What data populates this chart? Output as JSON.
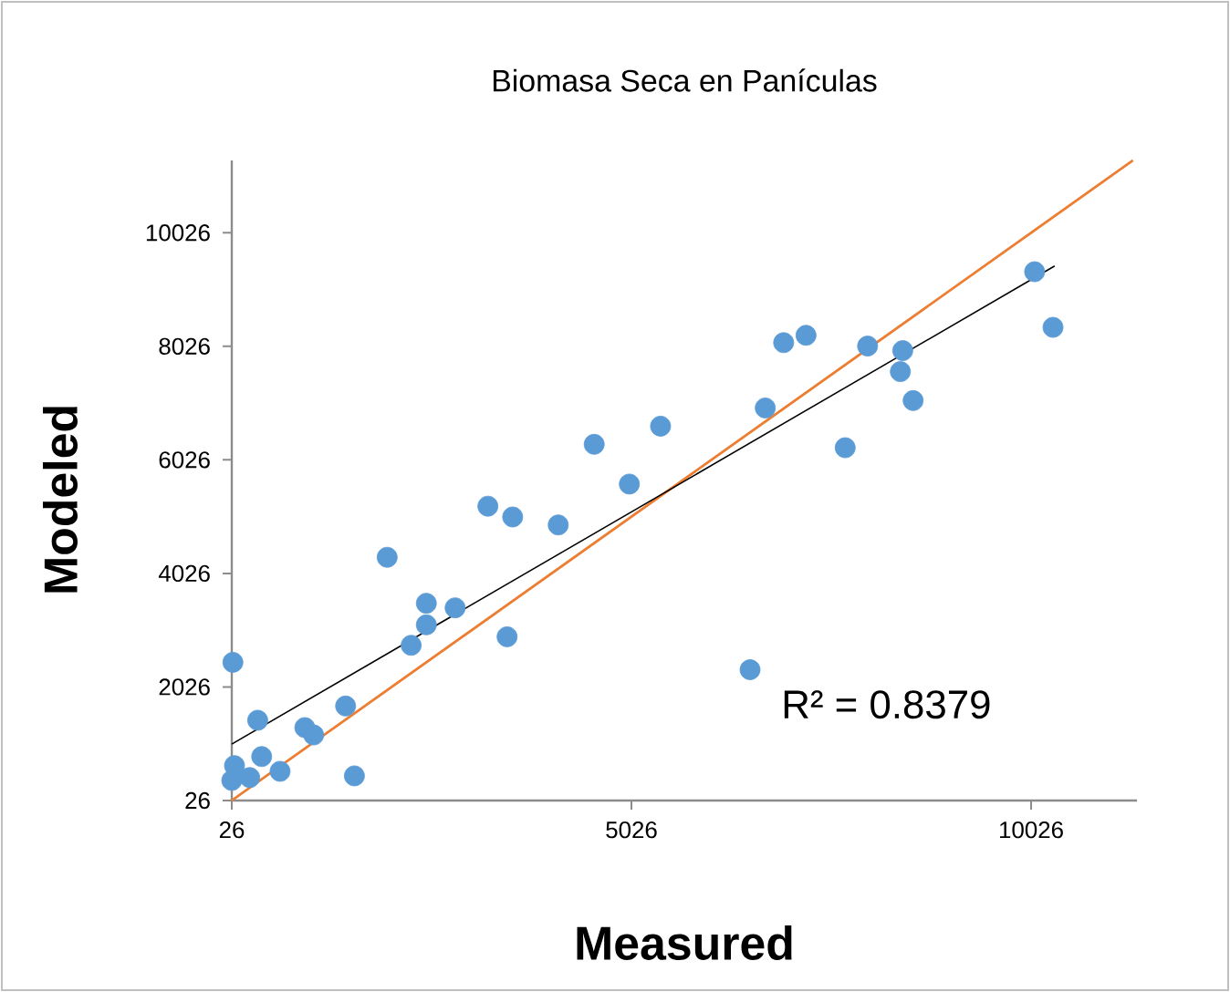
{
  "chart_data": {
    "type": "scatter",
    "title": "Biomasa Seca en Panículas",
    "xlabel": "Measured",
    "ylabel": "Modeled",
    "xlim": [
      26,
      11350
    ],
    "ylim": [
      26,
      11300
    ],
    "xticks": [
      26,
      5026,
      10026
    ],
    "yticks": [
      26,
      2026,
      4026,
      6026,
      8026,
      10026
    ],
    "grid": false,
    "annotations": [
      "R² = 0.8379"
    ],
    "series": [
      {
        "color": "#5b9bd5",
        "marker": "circle",
        "x": [
          40,
          350,
          60,
          26,
          250,
          400,
          630,
          940,
          1050,
          1450,
          1560,
          1970,
          2270,
          2460,
          2460,
          2820,
          3230,
          3470,
          3540,
          4110,
          4560,
          5000,
          5390,
          6510,
          6700,
          6930,
          7210,
          7980,
          7700,
          8420,
          8390,
          8550,
          10070,
          10300
        ],
        "values": [
          2460,
          1440,
          640,
          380,
          430,
          800,
          540,
          1310,
          1180,
          1690,
          460,
          4310,
          2760,
          3120,
          3500,
          3420,
          5210,
          2910,
          5020,
          4880,
          6300,
          5600,
          6620,
          2330,
          6940,
          8090,
          8220,
          8030,
          6240,
          7950,
          7580,
          7070,
          9340,
          8360
        ]
      },
      {
        "type": "line",
        "color": "#ed7d31",
        "marker": "none",
        "line_style": "solid",
        "x": [
          26,
          11300
        ],
        "values": [
          26,
          11300
        ]
      },
      {
        "type": "line",
        "color": "#000000",
        "marker": "none",
        "line_style": "solid",
        "x": [
          26,
          10320
        ],
        "values": [
          1020,
          9440
        ]
      }
    ]
  }
}
